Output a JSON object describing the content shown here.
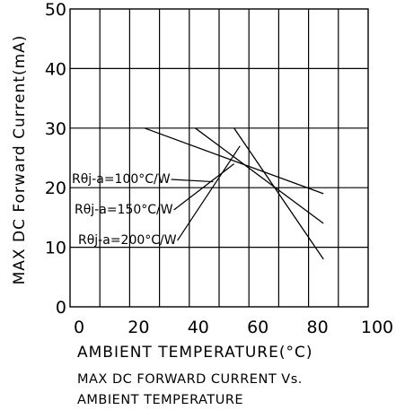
{
  "chart_data": {
    "type": "line",
    "xlabel": "AMBIENT TEMPERATURE(°C)",
    "ylabel": "MAX DC Forward Current(mA)",
    "caption": [
      "MAX DC FORWARD CURRENT Vs.",
      "AMBIENT TEMPERATURE"
    ],
    "xlim": [
      0,
      100
    ],
    "ylim": [
      0,
      50
    ],
    "xticks": [
      "0",
      "20",
      "40",
      "60",
      "80",
      "100"
    ],
    "yticks": [
      "0",
      "10",
      "20",
      "30",
      "40",
      "50"
    ],
    "grid": true,
    "series": [
      {
        "name": "Rθj-a=100°C/W",
        "x": [
          25,
          85
        ],
        "y": [
          30,
          19
        ]
      },
      {
        "name": "Rθj-a=150°C/W",
        "x": [
          42,
          85
        ],
        "y": [
          30,
          14
        ]
      },
      {
        "name": "Rθj-a=200°C/W",
        "x": [
          55,
          85
        ],
        "y": [
          30,
          8
        ]
      }
    ],
    "annotations": [
      {
        "text": "Rθj-a=100°C/W",
        "pointer_x": 48,
        "pointer_y": 21
      },
      {
        "text": "Rθj-a=150°C/W",
        "pointer_x": 55,
        "pointer_y": 24
      },
      {
        "text": "Rθj-a=200°C/W",
        "pointer_x": 57,
        "pointer_y": 27
      }
    ]
  }
}
